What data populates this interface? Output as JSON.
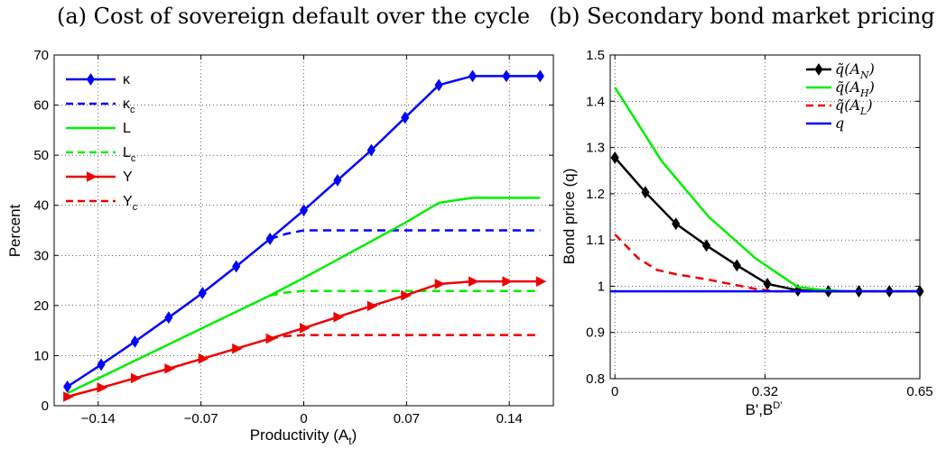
{
  "chart_data": [
    {
      "type": "line",
      "title": "(a) Cost of sovereign default over the cycle",
      "xlabel": "Productivity (A_t)",
      "ylabel": "Percent",
      "xlim": [
        -0.17,
        0.17
      ],
      "ylim": [
        0,
        70
      ],
      "x_ticks": [
        "−0.14",
        "−0.07",
        "0",
        "0.07",
        "0.14"
      ],
      "x_tick_values": [
        -0.14,
        -0.07,
        0,
        0.07,
        0.14
      ],
      "y_ticks": [
        "0",
        "10",
        "20",
        "30",
        "40",
        "50",
        "60",
        "70"
      ],
      "y_tick_values": [
        0,
        10,
        20,
        30,
        40,
        50,
        60,
        70
      ],
      "grid": true,
      "legend_position": "top-left",
      "series": [
        {
          "name": "κ",
          "color": "#0000ff",
          "style": "solid",
          "marker": "diamond",
          "x": [
            -0.161,
            -0.138,
            -0.115,
            -0.092,
            -0.069,
            -0.046,
            -0.023,
            0,
            0.023,
            0.046,
            0.069,
            0.092,
            0.115,
            0.138,
            0.161
          ],
          "y": [
            3.8,
            8.2,
            12.8,
            17.6,
            22.5,
            27.8,
            33.3,
            39.0,
            45.0,
            51.0,
            57.5,
            64.0,
            65.8,
            65.8,
            65.8
          ]
        },
        {
          "name": "κ_c",
          "color": "#0000ff",
          "style": "dashed",
          "marker": "none",
          "x": [
            -0.023,
            -0.012,
            0,
            0.161
          ],
          "y": [
            33.3,
            34.3,
            35.0,
            35.0
          ]
        },
        {
          "name": "L",
          "color": "#00ee00",
          "style": "solid",
          "marker": "none",
          "x": [
            -0.161,
            -0.023,
            0,
            0.069,
            0.092,
            0.115,
            0.161
          ],
          "y": [
            2.5,
            22.0,
            25.5,
            36.5,
            40.5,
            41.5,
            41.5
          ]
        },
        {
          "name": "L_c",
          "color": "#00ee00",
          "style": "dashed",
          "marker": "none",
          "x": [
            -0.023,
            -0.012,
            0,
            0.161
          ],
          "y": [
            22.0,
            22.6,
            22.9,
            22.9
          ]
        },
        {
          "name": "Y",
          "color": "#ee0000",
          "style": "solid",
          "marker": "triangle-right",
          "x": [
            -0.161,
            -0.138,
            -0.115,
            -0.092,
            -0.069,
            -0.046,
            -0.023,
            0,
            0.023,
            0.046,
            0.069,
            0.092,
            0.115,
            0.138,
            0.161
          ],
          "y": [
            1.8,
            3.6,
            5.5,
            7.4,
            9.4,
            11.4,
            13.4,
            15.5,
            17.7,
            19.9,
            22.0,
            24.3,
            24.8,
            24.8,
            24.8
          ]
        },
        {
          "name": "Y_c",
          "color": "#ee0000",
          "style": "dashed",
          "marker": "none",
          "x": [
            -0.023,
            -0.012,
            0,
            0.161
          ],
          "y": [
            13.4,
            13.9,
            14.1,
            14.1
          ]
        }
      ]
    },
    {
      "type": "line",
      "title": "(b) Secondary bond market pricing",
      "xlabel": "B',B^D'",
      "ylabel": "Bond price (q)",
      "xlim": [
        -0.01,
        0.65
      ],
      "ylim": [
        0.8,
        1.5
      ],
      "x_ticks": [
        "0",
        "0.32",
        "0.65"
      ],
      "x_tick_values": [
        0,
        0.32,
        0.65
      ],
      "y_ticks": [
        "0.8",
        "0.9",
        "1",
        "1.1",
        "1.2",
        "1.3",
        "1.4",
        "1.5"
      ],
      "y_tick_values": [
        0.8,
        0.9,
        1.0,
        1.1,
        1.2,
        1.3,
        1.4,
        1.5
      ],
      "grid": true,
      "legend_position": "top-right",
      "series": [
        {
          "name": "q̃(A_N)",
          "color": "#000000",
          "style": "solid",
          "marker": "diamond",
          "x": [
            0,
            0.065,
            0.13,
            0.195,
            0.26,
            0.325,
            0.39,
            0.455,
            0.52,
            0.585,
            0.65
          ],
          "y": [
            1.278,
            1.203,
            1.135,
            1.088,
            1.045,
            1.005,
            0.991,
            0.989,
            0.989,
            0.989,
            0.989
          ]
        },
        {
          "name": "q̃(A_H)",
          "color": "#00ee00",
          "style": "solid",
          "marker": "none",
          "x": [
            0,
            0.1,
            0.2,
            0.3,
            0.39,
            0.44,
            0.5,
            0.65
          ],
          "y": [
            1.43,
            1.27,
            1.15,
            1.06,
            0.998,
            0.992,
            0.989,
            0.989
          ]
        },
        {
          "name": "q̃(A_L)",
          "color": "#ee0000",
          "style": "dashed",
          "marker": "none",
          "x": [
            0,
            0.05,
            0.09,
            0.13,
            0.2,
            0.26,
            0.3,
            0.34,
            0.65
          ],
          "y": [
            1.112,
            1.06,
            1.035,
            1.026,
            1.014,
            1.002,
            0.994,
            0.989,
            0.989
          ]
        },
        {
          "name": "q",
          "color": "#0000ff",
          "style": "solid",
          "marker": "none",
          "x": [
            -0.01,
            0.65
          ],
          "y": [
            0.989,
            0.989
          ]
        }
      ]
    }
  ]
}
